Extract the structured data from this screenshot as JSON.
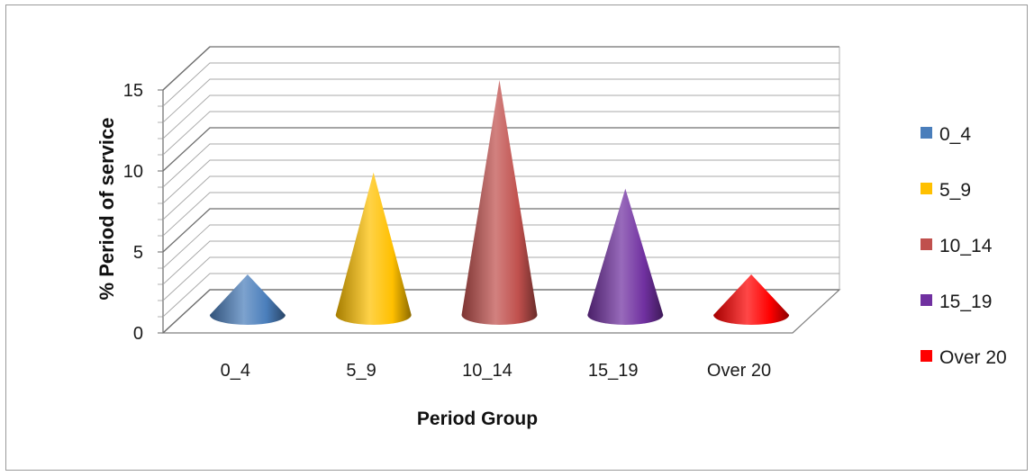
{
  "chart_data": {
    "type": "bar",
    "mark": "3d-cone",
    "title": "",
    "xlabel": "Period Group",
    "ylabel": "% Period of service",
    "ylim": [
      0,
      15
    ],
    "yticks": [
      "0",
      "5",
      "10",
      "15"
    ],
    "grid": true,
    "legend_position": "right",
    "categories": [
      "0_4",
      "5_9",
      "10_14",
      "15_19",
      "Over 20"
    ],
    "values": [
      2.5,
      8.8,
      14.5,
      7.8,
      2.5
    ],
    "colors": [
      "#4a7ebb",
      "#ffc000",
      "#c0504d",
      "#7030a0",
      "#ff0000"
    ],
    "legend": [
      "0_4",
      "5_9",
      "10_14",
      "15_19",
      "Over 20"
    ]
  }
}
